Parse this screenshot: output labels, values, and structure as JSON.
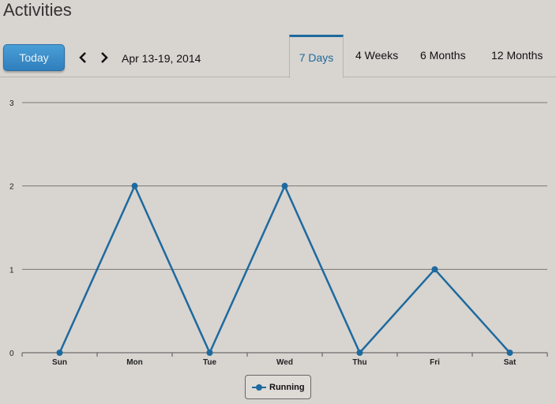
{
  "header": {
    "title": "Activities"
  },
  "toolbar": {
    "today_label": "Today",
    "prev_icon": "chevron-left-icon",
    "next_icon": "chevron-right-icon",
    "date_range": "Apr 13-19, 2014"
  },
  "tabs": [
    {
      "label": "7 Days",
      "active": true
    },
    {
      "label": "4 Weeks",
      "active": false
    },
    {
      "label": "6 Months",
      "active": false
    },
    {
      "label": "12 Months",
      "active": false
    }
  ],
  "colors": {
    "accent": "#1d6a9e",
    "button": "#3b8fcb",
    "background": "#d8d4d0"
  },
  "chart_data": {
    "type": "line",
    "categories": [
      "Sun",
      "Mon",
      "Tue",
      "Wed",
      "Thu",
      "Fri",
      "Sat"
    ],
    "series": [
      {
        "name": "Running",
        "values": [
          0,
          2,
          0,
          2,
          0,
          1,
          0
        ]
      }
    ],
    "yticks": [
      "0",
      "1",
      "2",
      "3"
    ],
    "ylim": [
      0,
      3
    ],
    "grid": true,
    "legend": "bottom-center"
  }
}
